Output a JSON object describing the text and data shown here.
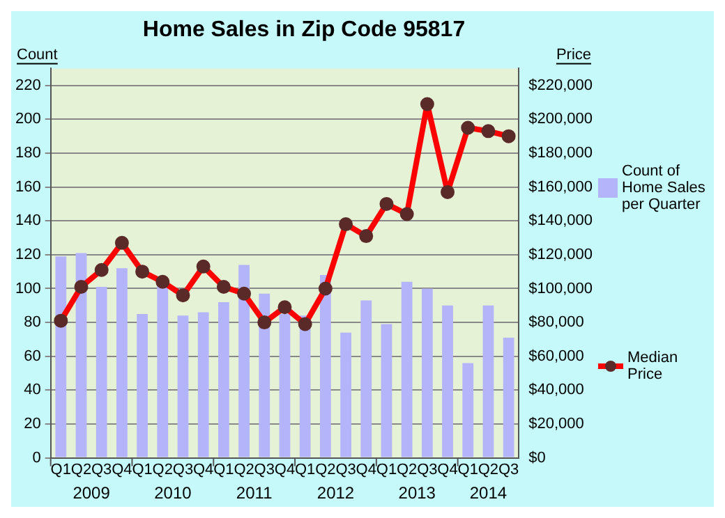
{
  "chart_data": {
    "type": "bar",
    "title": "Home Sales in Zip Code 95817",
    "ylabel": "Count",
    "y2label": "Price",
    "categories": [
      "Q1",
      "Q2",
      "Q3",
      "Q4",
      "Q1",
      "Q2",
      "Q3",
      "Q4",
      "Q1",
      "Q2",
      "Q3",
      "Q4",
      "Q1",
      "Q2",
      "Q3",
      "Q4",
      "Q1",
      "Q2",
      "Q3",
      "Q4",
      "Q1",
      "Q2",
      "Q3"
    ],
    "annotations": [
      "2009",
      "2010",
      "2011",
      "2012",
      "2013",
      "2014"
    ],
    "series": [
      {
        "name": "Count of Home Sales per Quarter",
        "color": "#b4b4fa",
        "values": [
          119,
          121,
          101,
          112,
          85,
          102,
          84,
          86,
          92,
          114,
          97,
          85,
          84,
          108,
          74,
          93,
          79,
          104,
          100,
          90,
          56,
          90,
          71
        ]
      },
      {
        "name": "Median Price",
        "type": "line",
        "axis": "y2",
        "color": "#ff0000",
        "values": [
          81000,
          101000,
          111000,
          127000,
          110000,
          104000,
          96000,
          113000,
          101000,
          97000,
          80000,
          89000,
          79000,
          100000,
          138000,
          131000,
          150000,
          144000,
          209000,
          157000,
          195000,
          193000,
          190000
        ]
      }
    ],
    "ylim": [
      0,
      230
    ],
    "yticks": [
      0,
      20,
      40,
      60,
      80,
      100,
      120,
      140,
      160,
      180,
      200,
      220
    ],
    "y2lim": [
      0,
      230000
    ],
    "y2ticks": [
      {
        "value": 0,
        "label": "$0"
      },
      {
        "value": 20000,
        "label": "$20,000"
      },
      {
        "value": 40000,
        "label": "$40,000"
      },
      {
        "value": 60000,
        "label": "$60,000"
      },
      {
        "value": 80000,
        "label": "$80,000"
      },
      {
        "value": 100000,
        "label": "$100,000"
      },
      {
        "value": 120000,
        "label": "$120,000"
      },
      {
        "value": 140000,
        "label": "$140,000"
      },
      {
        "value": 160000,
        "label": "$160,000"
      },
      {
        "value": 180000,
        "label": "$180,000"
      },
      {
        "value": 200000,
        "label": "$200,000"
      },
      {
        "value": 220000,
        "label": "$220,000"
      }
    ],
    "grid": "y",
    "legend": "right",
    "marker": "circle",
    "line_style": "solid"
  }
}
